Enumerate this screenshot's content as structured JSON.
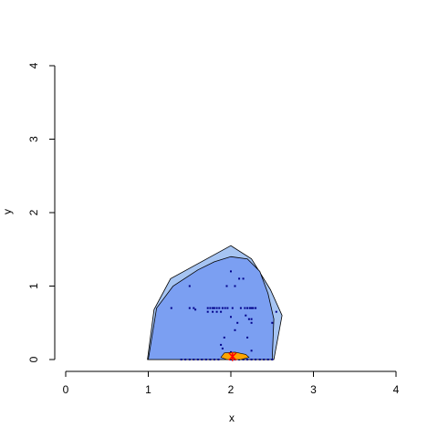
{
  "chart_data": {
    "type": "scatter",
    "title": "",
    "xlabel": "x",
    "ylabel": "y",
    "xlim": [
      0,
      4
    ],
    "ylim": [
      0,
      4
    ],
    "xticks": [
      0,
      1,
      2,
      3,
      4
    ],
    "yticks": [
      0,
      1,
      2,
      3,
      4
    ],
    "grid": false,
    "legend": "none",
    "colors": {
      "outer_region": "#a6c4f2",
      "inner_region": "#7b9ff2",
      "points": "#00008b",
      "median_region": "#ffa500",
      "median_marker": "#ff0000",
      "outline": "#000000"
    },
    "outer_hull": [
      [
        0.99,
        0.0
      ],
      [
        1.07,
        0.68
      ],
      [
        1.27,
        1.1
      ],
      [
        2.0,
        1.55
      ],
      [
        2.25,
        1.37
      ],
      [
        2.48,
        0.95
      ],
      [
        2.62,
        0.6
      ],
      [
        2.52,
        0.0
      ]
    ],
    "inner_hull": [
      [
        1.0,
        0.0
      ],
      [
        1.1,
        0.7
      ],
      [
        1.3,
        1.0
      ],
      [
        1.6,
        1.22
      ],
      [
        1.8,
        1.33
      ],
      [
        2.0,
        1.4
      ],
      [
        2.2,
        1.37
      ],
      [
        2.35,
        1.2
      ],
      [
        2.45,
        0.9
      ],
      [
        2.52,
        0.55
      ],
      [
        2.5,
        0.0
      ]
    ],
    "median_region": [
      [
        1.88,
        0.03
      ],
      [
        1.92,
        0.09
      ],
      [
        2.05,
        0.1
      ],
      [
        2.18,
        0.07
      ],
      [
        2.22,
        0.03
      ],
      [
        2.12,
        0.0
      ],
      [
        1.95,
        0.0
      ]
    ],
    "median": [
      2.02,
      0.04
    ],
    "points": [
      [
        2.0,
        1.2
      ],
      [
        2.1,
        1.1
      ],
      [
        2.15,
        1.1
      ],
      [
        1.5,
        1.0
      ],
      [
        1.95,
        1.0
      ],
      [
        2.05,
        1.0
      ],
      [
        1.28,
        0.7
      ],
      [
        1.5,
        0.7
      ],
      [
        1.55,
        0.7
      ],
      [
        1.57,
        0.68
      ],
      [
        1.72,
        0.7
      ],
      [
        1.75,
        0.7
      ],
      [
        1.78,
        0.7
      ],
      [
        1.8,
        0.7
      ],
      [
        1.83,
        0.7
      ],
      [
        1.86,
        0.7
      ],
      [
        1.9,
        0.7
      ],
      [
        1.93,
        0.7
      ],
      [
        1.96,
        0.7
      ],
      [
        2.02,
        0.7
      ],
      [
        2.12,
        0.7
      ],
      [
        2.17,
        0.7
      ],
      [
        2.2,
        0.7
      ],
      [
        2.23,
        0.7
      ],
      [
        2.25,
        0.7
      ],
      [
        2.27,
        0.7
      ],
      [
        2.3,
        0.7
      ],
      [
        1.72,
        0.65
      ],
      [
        1.78,
        0.65
      ],
      [
        1.83,
        0.65
      ],
      [
        1.88,
        0.65
      ],
      [
        2.18,
        0.6
      ],
      [
        2.22,
        0.55
      ],
      [
        2.25,
        0.55
      ],
      [
        2.0,
        0.58
      ],
      [
        2.08,
        0.5
      ],
      [
        2.25,
        0.5
      ],
      [
        2.5,
        0.5
      ],
      [
        2.55,
        0.65
      ],
      [
        2.05,
        0.4
      ],
      [
        1.92,
        0.3
      ],
      [
        2.2,
        0.3
      ],
      [
        1.88,
        0.2
      ],
      [
        1.9,
        0.15
      ],
      [
        2.25,
        0.12
      ],
      [
        2.0,
        0.1
      ],
      [
        2.05,
        0.08
      ],
      [
        1.4,
        0.0
      ],
      [
        1.45,
        0.0
      ],
      [
        1.5,
        0.0
      ],
      [
        1.55,
        0.0
      ],
      [
        1.6,
        0.0
      ],
      [
        1.65,
        0.0
      ],
      [
        1.7,
        0.0
      ],
      [
        1.75,
        0.0
      ],
      [
        1.8,
        0.0
      ],
      [
        1.85,
        0.0
      ],
      [
        2.0,
        0.0
      ],
      [
        2.05,
        0.0
      ],
      [
        2.1,
        0.0
      ],
      [
        2.15,
        0.0
      ],
      [
        2.2,
        0.0
      ],
      [
        2.25,
        0.0
      ],
      [
        2.3,
        0.0
      ],
      [
        2.35,
        0.0
      ],
      [
        2.4,
        0.0
      ],
      [
        2.45,
        0.0
      ],
      [
        2.5,
        0.0
      ]
    ]
  }
}
